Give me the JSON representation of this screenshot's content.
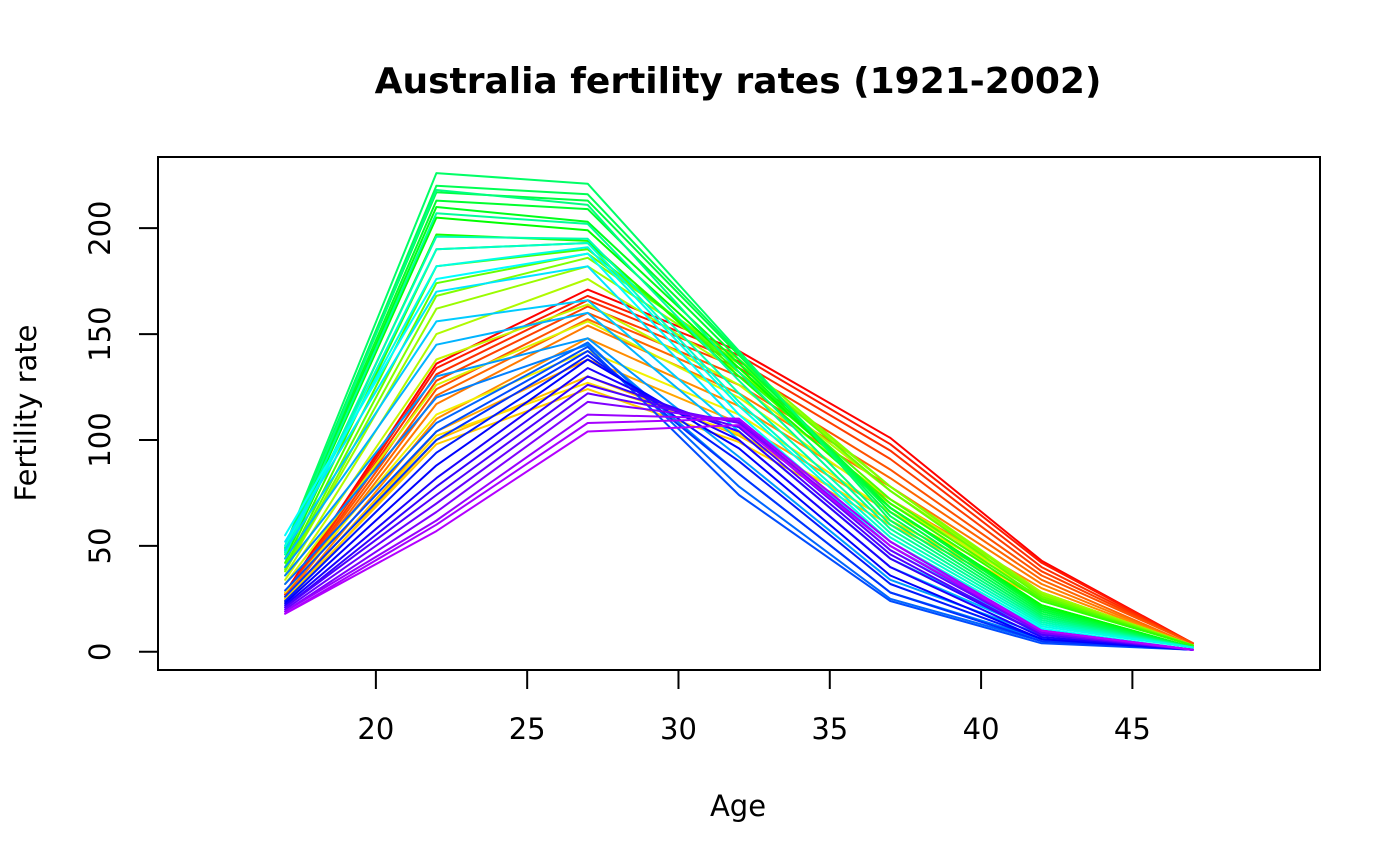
{
  "chart_data": {
    "type": "line",
    "title": "Australia fertility rates  (1921-2002)",
    "xlabel": "Age",
    "ylabel": "Fertility rate",
    "x": [
      17,
      22,
      27,
      32,
      37,
      42,
      47
    ],
    "xlim": [
      12.8,
      51.2
    ],
    "ylim": [
      -8.6,
      233.6
    ],
    "xticks": [
      20,
      25,
      30,
      35,
      40,
      45
    ],
    "yticks": [
      0,
      50,
      100,
      150,
      200
    ],
    "grid": false,
    "legend": "none",
    "series": [
      {
        "color": "#ff0000",
        "values": [
          28,
          136,
          171,
          142,
          101,
          43,
          4
        ]
      },
      {
        "color": "#ff1a00",
        "values": [
          27,
          134,
          168,
          140,
          98,
          42,
          4
        ]
      },
      {
        "color": "#ff2e00",
        "values": [
          27,
          131,
          166,
          137,
          95,
          40,
          4
        ]
      },
      {
        "color": "#ff4000",
        "values": [
          26,
          128,
          163,
          134,
          91,
          38,
          4
        ]
      },
      {
        "color": "#ff5300",
        "values": [
          26,
          124,
          160,
          130,
          86,
          36,
          4
        ]
      },
      {
        "color": "#ff6600",
        "values": [
          25,
          121,
          157,
          126,
          82,
          34,
          3
        ]
      },
      {
        "color": "#ff7a00",
        "values": [
          25,
          117,
          154,
          122,
          78,
          32,
          3
        ]
      },
      {
        "color": "#ff8c00",
        "values": [
          24,
          110,
          148,
          116,
          72,
          30,
          3
        ]
      },
      {
        "color": "#ffa500",
        "values": [
          24,
          104,
          138,
          108,
          66,
          28,
          3
        ]
      },
      {
        "color": "#ffbb00",
        "values": [
          23,
          100,
          130,
          102,
          62,
          26,
          3
        ]
      },
      {
        "color": "#ffcc00",
        "values": [
          24,
          98,
          124,
          99,
          60,
          25,
          3
        ]
      },
      {
        "color": "#ffe000",
        "values": [
          25,
          102,
          127,
          103,
          62,
          26,
          3
        ]
      },
      {
        "color": "#f2f200",
        "values": [
          28,
          112,
          142,
          112,
          66,
          28,
          3
        ]
      },
      {
        "color": "#dcf500",
        "values": [
          32,
          126,
          156,
          120,
          70,
          28,
          3
        ]
      },
      {
        "color": "#c6f700",
        "values": [
          34,
          138,
          164,
          126,
          72,
          28,
          3
        ]
      },
      {
        "color": "#b0fa00",
        "values": [
          36,
          150,
          176,
          132,
          76,
          28,
          3
        ]
      },
      {
        "color": "#99fc00",
        "values": [
          38,
          162,
          182,
          136,
          78,
          28,
          3
        ]
      },
      {
        "color": "#80ff00",
        "values": [
          38,
          168,
          186,
          138,
          78,
          27,
          3
        ]
      },
      {
        "color": "#66ff00",
        "values": [
          39,
          174,
          188,
          136,
          76,
          26,
          3
        ]
      },
      {
        "color": "#4dff00",
        "values": [
          40,
          182,
          190,
          134,
          72,
          25,
          3
        ]
      },
      {
        "color": "#33ff00",
        "values": [
          42,
          190,
          193,
          132,
          70,
          24,
          3
        ]
      },
      {
        "color": "#1aff00",
        "values": [
          44,
          197,
          194,
          130,
          68,
          22,
          2
        ]
      },
      {
        "color": "#00ff00",
        "values": [
          46,
          205,
          199,
          134,
          68,
          22,
          2
        ]
      },
      {
        "color": "#00ff1a",
        "values": [
          47,
          210,
          203,
          136,
          68,
          21,
          2
        ]
      },
      {
        "color": "#00ff2e",
        "values": [
          48,
          213,
          209,
          138,
          68,
          20,
          2
        ]
      },
      {
        "color": "#00ff40",
        "values": [
          49,
          217,
          213,
          140,
          66,
          19,
          2
        ]
      },
      {
        "color": "#00ff53",
        "values": [
          49,
          220,
          216,
          141,
          64,
          18,
          2
        ]
      },
      {
        "color": "#00ff66",
        "values": [
          50,
          226,
          221,
          142,
          62,
          17,
          2
        ]
      },
      {
        "color": "#00ff80",
        "values": [
          48,
          218,
          211,
          132,
          60,
          16,
          2
        ]
      },
      {
        "color": "#00ff99",
        "values": [
          47,
          207,
          202,
          128,
          58,
          15,
          2
        ]
      },
      {
        "color": "#00ffb3",
        "values": [
          46,
          196,
          195,
          122,
          56,
          14,
          2
        ]
      },
      {
        "color": "#00ffcc",
        "values": [
          47,
          190,
          193,
          118,
          54,
          13,
          2
        ]
      },
      {
        "color": "#00ffe6",
        "values": [
          50,
          182,
          191,
          116,
          52,
          12,
          2
        ]
      },
      {
        "color": "#00ffff",
        "values": [
          55,
          176,
          188,
          112,
          50,
          11,
          1
        ]
      },
      {
        "color": "#00e6ff",
        "values": [
          52,
          170,
          182,
          108,
          48,
          10,
          1
        ]
      },
      {
        "color": "#00ccff",
        "values": [
          48,
          156,
          166,
          104,
          44,
          10,
          1
        ]
      },
      {
        "color": "#00b3ff",
        "values": [
          44,
          145,
          160,
          100,
          40,
          9,
          1
        ]
      },
      {
        "color": "#0099ff",
        "values": [
          40,
          130,
          148,
          92,
          34,
          8,
          1
        ]
      },
      {
        "color": "#0080ff",
        "values": [
          36,
          120,
          145,
          84,
          28,
          6,
          1
        ]
      },
      {
        "color": "#0066ff",
        "values": [
          32,
          108,
          146,
          78,
          25,
          5,
          1
        ]
      },
      {
        "color": "#004dff",
        "values": [
          29,
          104,
          144,
          74,
          24,
          4,
          1
        ]
      },
      {
        "color": "#0033ff",
        "values": [
          26,
          100,
          142,
          84,
          28,
          5,
          1
        ]
      },
      {
        "color": "#001aff",
        "values": [
          24,
          94,
          140,
          90,
          32,
          6,
          1
        ]
      },
      {
        "color": "#0000ff",
        "values": [
          23,
          88,
          138,
          96,
          36,
          6,
          1
        ]
      },
      {
        "color": "#1a00ff",
        "values": [
          22,
          82,
          134,
          100,
          40,
          7,
          1
        ]
      },
      {
        "color": "#3300ff",
        "values": [
          21,
          78,
          130,
          104,
          44,
          8,
          1
        ]
      },
      {
        "color": "#4d00ff",
        "values": [
          21,
          74,
          126,
          106,
          46,
          8,
          1
        ]
      },
      {
        "color": "#6600ff",
        "values": [
          20,
          70,
          122,
          108,
          48,
          9,
          1
        ]
      },
      {
        "color": "#8000ff",
        "values": [
          19,
          66,
          118,
          109,
          50,
          9,
          1
        ]
      },
      {
        "color": "#9900ff",
        "values": [
          19,
          62,
          112,
          110,
          52,
          10,
          1
        ]
      },
      {
        "color": "#a600ff",
        "values": [
          18,
          60,
          108,
          110,
          52,
          10,
          1
        ]
      },
      {
        "color": "#b300ff",
        "values": [
          18,
          57,
          104,
          107,
          50,
          10,
          1
        ]
      }
    ]
  }
}
